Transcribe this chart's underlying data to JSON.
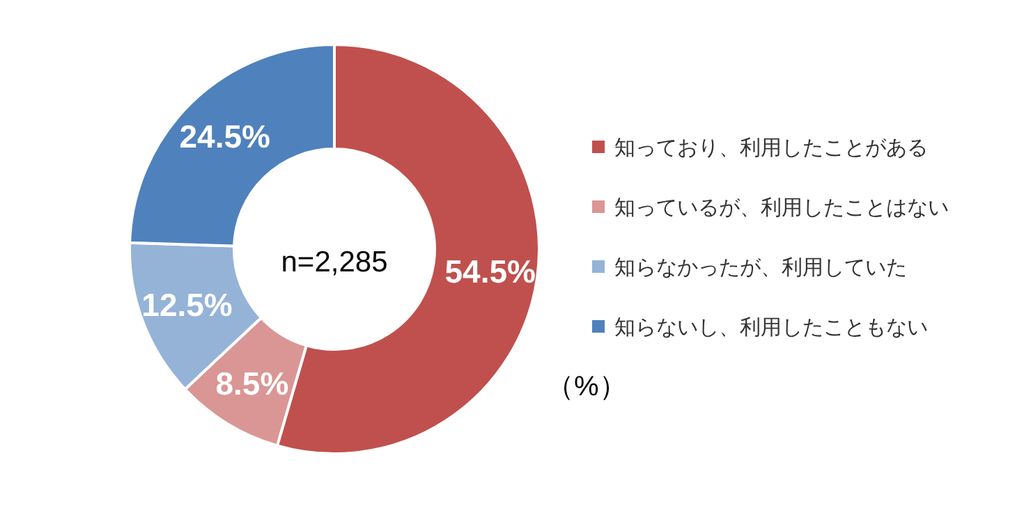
{
  "chart_data": {
    "type": "donut",
    "categories": [
      "知っており、利用したことがある",
      "知っているが、利用したことはない",
      "知らなかったが、利用していた",
      "知らないし、利用したこともない"
    ],
    "values": [
      54.5,
      8.5,
      12.5,
      24.5
    ],
    "colors": [
      "#c0504d",
      "#d99694",
      "#95b3d7",
      "#4f81bd"
    ],
    "value_labels": [
      "54.5%",
      "8.5%",
      "12.5%",
      "24.5%"
    ],
    "annotations": [
      "n=2,285",
      "（%）"
    ],
    "legend": "right"
  }
}
